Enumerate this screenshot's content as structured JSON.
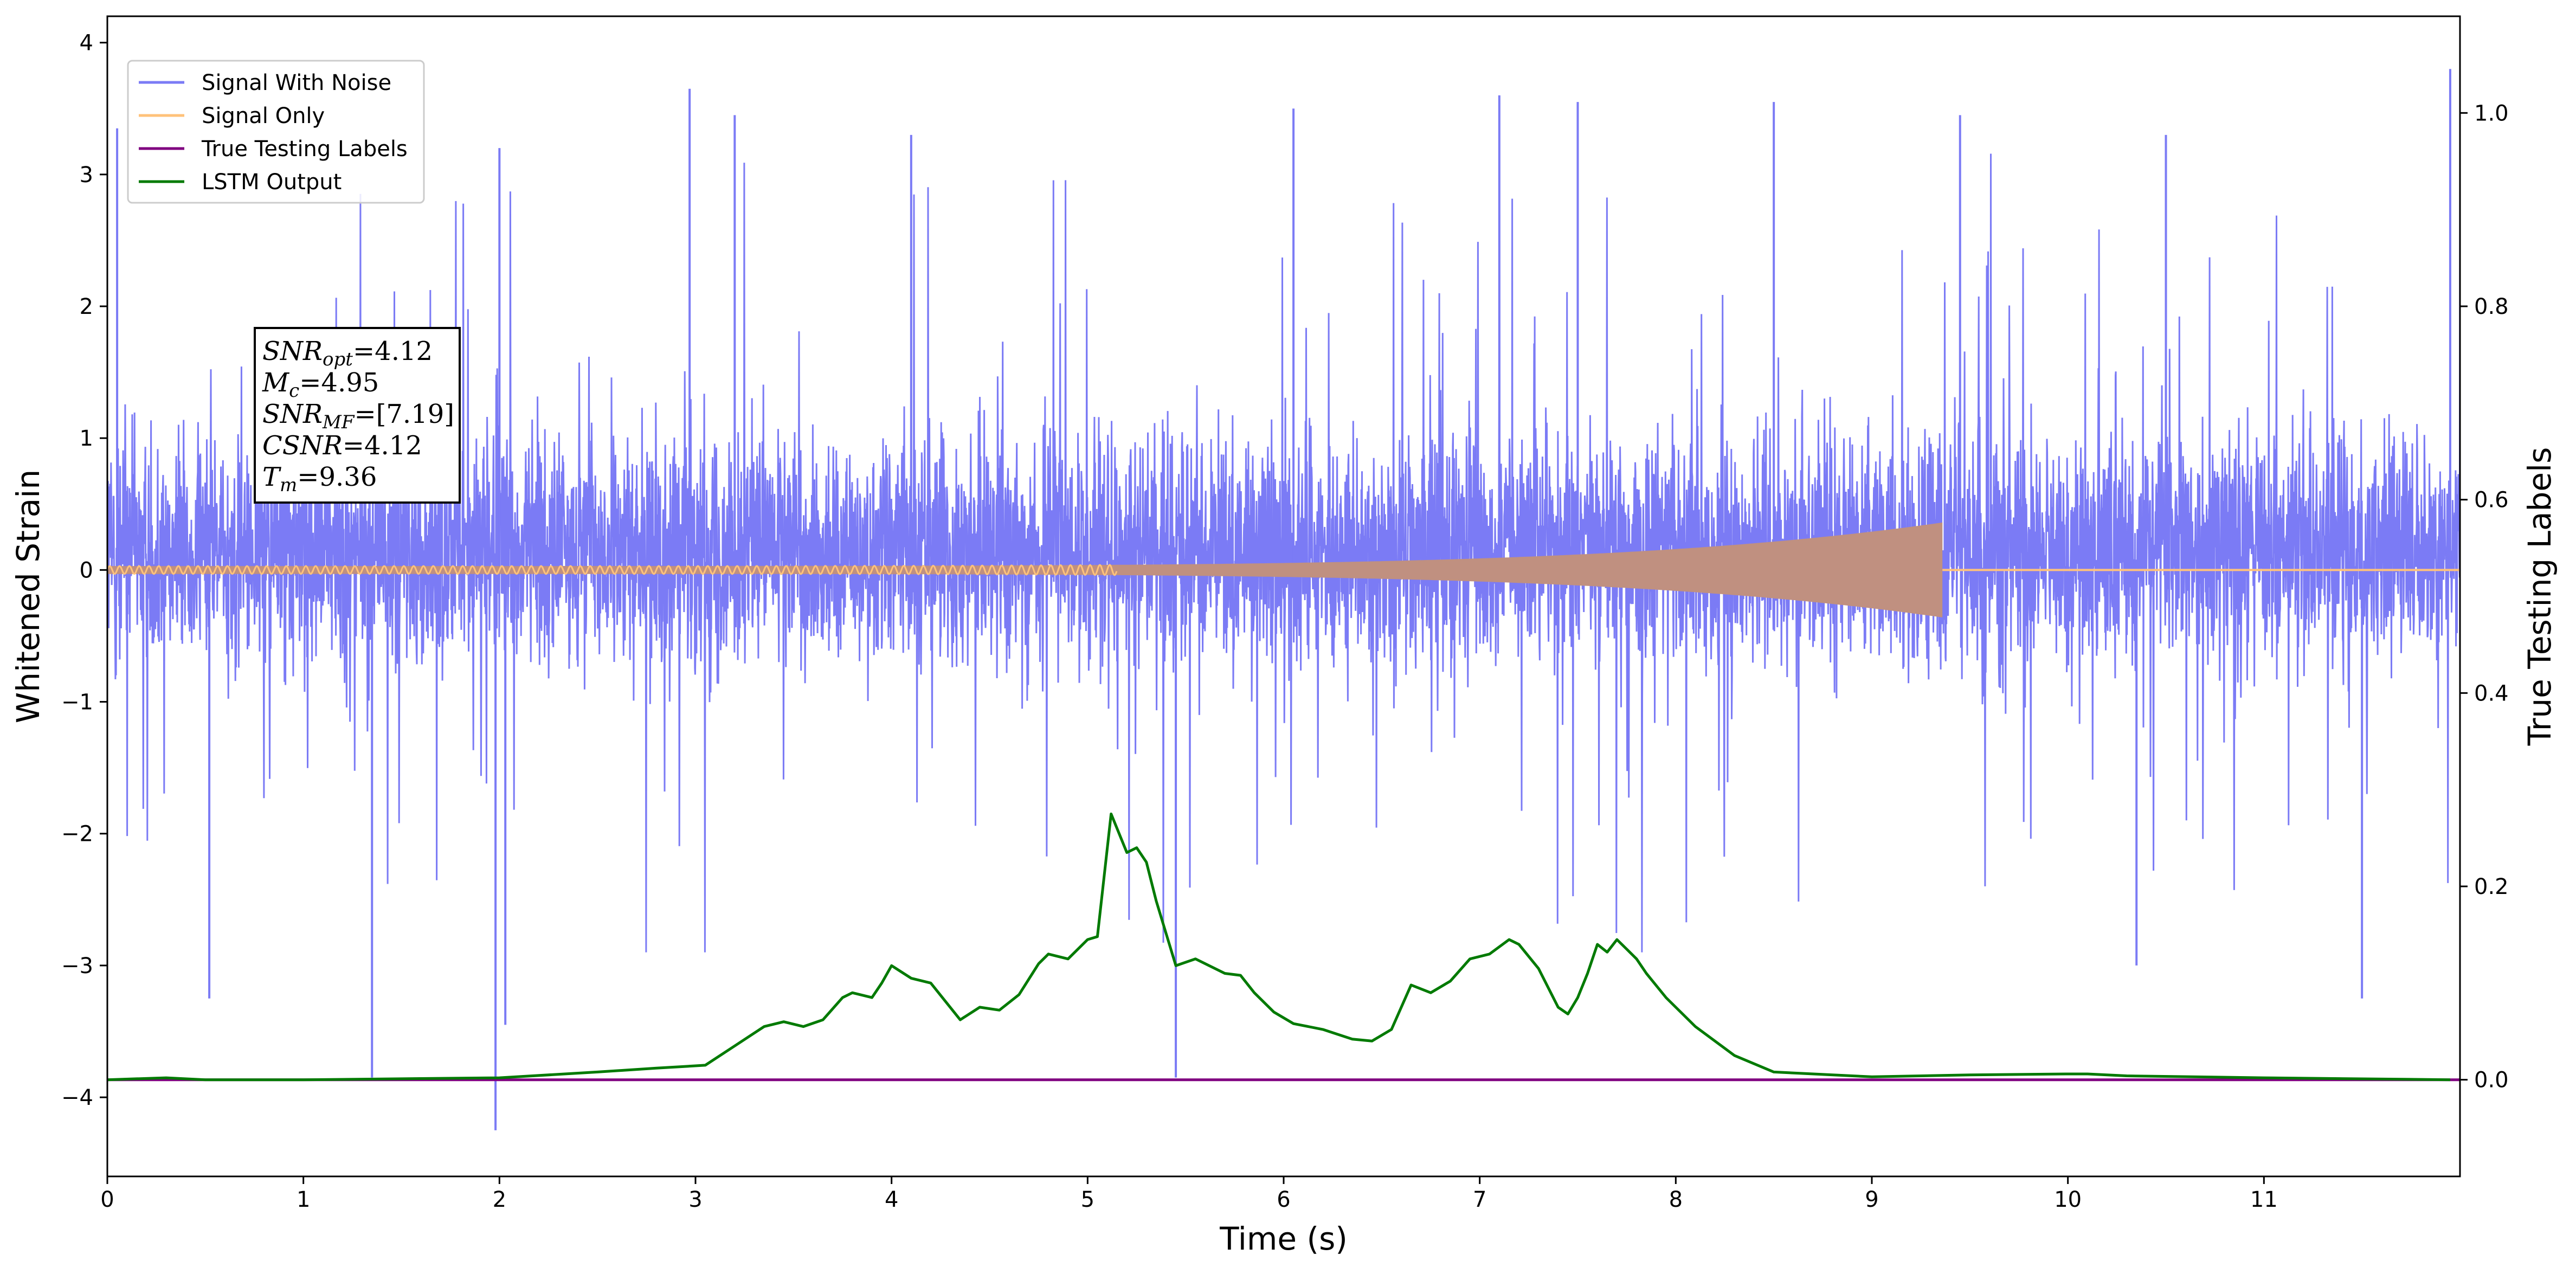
{
  "chart_data": {
    "type": "line",
    "xlabel": "Time (s)",
    "ylabel": "Whitened Strain",
    "y2label": "True Testing Labels",
    "xlim": [
      0,
      12
    ],
    "ylim": [
      -4.6,
      4.2
    ],
    "y2lim": [
      -0.1,
      1.1
    ],
    "xticks": [
      0,
      1,
      2,
      3,
      4,
      5,
      6,
      7,
      8,
      9,
      10,
      11
    ],
    "xtick_labels": [
      "0",
      "1",
      "2",
      "3",
      "4",
      "5",
      "6",
      "7",
      "8",
      "9",
      "10",
      "11"
    ],
    "yticks": [
      -4,
      -3,
      -2,
      -1,
      0,
      1,
      2,
      3,
      4
    ],
    "ytick_labels": [
      "−4",
      "−3",
      "−2",
      "−1",
      "0",
      "1",
      "2",
      "3",
      "4"
    ],
    "y2ticks": [
      0.0,
      0.2,
      0.4,
      0.6,
      0.8,
      1.0
    ],
    "y2tick_labels": [
      "0.0",
      "0.2",
      "0.4",
      "0.6",
      "0.8",
      "1.0"
    ],
    "grid": false,
    "legend_position": "top-left",
    "series": [
      {
        "name": "Signal With Noise",
        "color": "#7b7bf5",
        "axis": "left",
        "kind": "noise",
        "typical_range": [
          -1.9,
          2.2
        ],
        "extremes": [
          -4.25,
          3.8
        ],
        "spikes": [
          [
            0.05,
            3.35
          ],
          [
            0.52,
            -3.25
          ],
          [
            1.35,
            -3.85
          ],
          [
            1.98,
            -4.25
          ],
          [
            2.0,
            3.2
          ],
          [
            2.03,
            -3.45
          ],
          [
            2.97,
            3.65
          ],
          [
            3.2,
            3.45
          ],
          [
            4.1,
            3.3
          ],
          [
            5.45,
            -3.85
          ],
          [
            6.05,
            3.5
          ],
          [
            7.1,
            3.6
          ],
          [
            7.5,
            3.55
          ],
          [
            8.5,
            3.55
          ],
          [
            9.45,
            3.45
          ],
          [
            10.5,
            3.3
          ],
          [
            11.95,
            3.8
          ],
          [
            11.5,
            -3.25
          ],
          [
            10.35,
            -3.0
          ]
        ]
      },
      {
        "name": "Signal Only",
        "color": "#ffc27a",
        "axis": "left",
        "kind": "chirp",
        "t_end": 9.36,
        "start_amplitude": 0.03,
        "peak_amplitude": 0.36
      },
      {
        "name": "True Testing Labels",
        "color": "#800080",
        "axis": "right",
        "x": [
          0,
          12
        ],
        "y": [
          0.0,
          0.0
        ]
      },
      {
        "name": "LSTM Output",
        "color": "#007a00",
        "axis": "right",
        "x": [
          0,
          0.3,
          0.5,
          1.0,
          1.5,
          2.0,
          2.5,
          2.8,
          3.05,
          3.2,
          3.35,
          3.45,
          3.55,
          3.65,
          3.75,
          3.8,
          3.9,
          3.95,
          4.0,
          4.1,
          4.2,
          4.35,
          4.45,
          4.55,
          4.65,
          4.75,
          4.8,
          4.9,
          5.0,
          5.05,
          5.12,
          5.2,
          5.25,
          5.3,
          5.35,
          5.45,
          5.55,
          5.62,
          5.7,
          5.78,
          5.85,
          5.95,
          6.05,
          6.2,
          6.35,
          6.45,
          6.55,
          6.65,
          6.75,
          6.85,
          6.95,
          7.05,
          7.15,
          7.2,
          7.3,
          7.4,
          7.45,
          7.5,
          7.55,
          7.6,
          7.65,
          7.7,
          7.75,
          7.8,
          7.85,
          7.95,
          8.1,
          8.3,
          8.5,
          9.0,
          9.5,
          10.0,
          10.1,
          10.3,
          11.0,
          12.0
        ],
        "y": [
          0.0,
          0.002,
          0.0,
          0.0,
          0.001,
          0.002,
          0.008,
          0.012,
          0.015,
          0.035,
          0.055,
          0.06,
          0.055,
          0.062,
          0.085,
          0.09,
          0.085,
          0.1,
          0.118,
          0.105,
          0.1,
          0.062,
          0.075,
          0.072,
          0.088,
          0.12,
          0.13,
          0.125,
          0.145,
          0.148,
          0.275,
          0.235,
          0.24,
          0.225,
          0.185,
          0.118,
          0.125,
          0.118,
          0.11,
          0.108,
          0.09,
          0.07,
          0.058,
          0.052,
          0.042,
          0.04,
          0.052,
          0.098,
          0.09,
          0.102,
          0.125,
          0.13,
          0.145,
          0.14,
          0.115,
          0.075,
          0.068,
          0.085,
          0.11,
          0.14,
          0.132,
          0.145,
          0.135,
          0.125,
          0.11,
          0.085,
          0.055,
          0.025,
          0.008,
          0.003,
          0.005,
          0.006,
          0.006,
          0.004,
          0.002,
          0.0
        ]
      }
    ],
    "annotation_lines": [
      {
        "label": "SNR",
        "sub": "opt",
        "eq": "=4.12"
      },
      {
        "label": "M",
        "sub": "c",
        "eq": "=4.95"
      },
      {
        "label": "SNR",
        "sub": "MF",
        "eq": "=[7.19]"
      },
      {
        "label": "CSNR",
        "sub": "",
        "eq": "=4.12"
      },
      {
        "label": "T",
        "sub": "m",
        "eq": "=9.36"
      }
    ]
  }
}
